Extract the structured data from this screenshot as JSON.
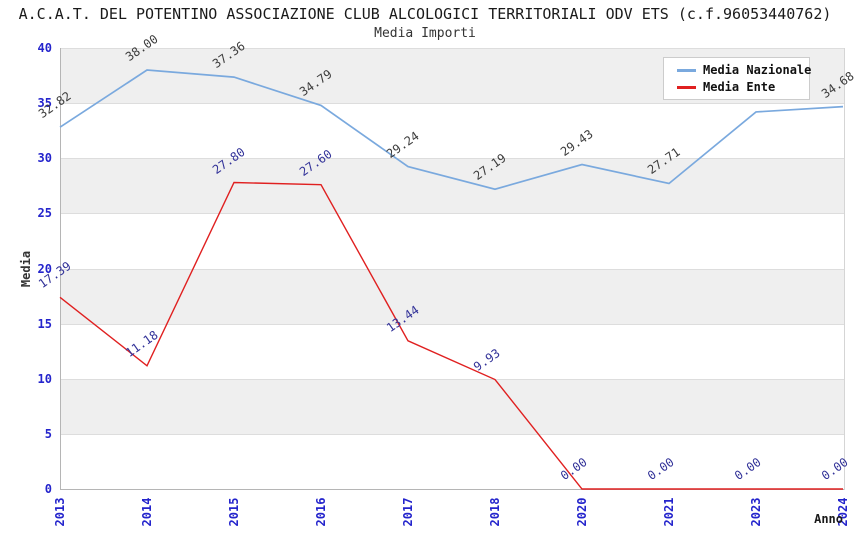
{
  "header": {
    "title": "A.C.A.T. DEL POTENTINO ASSOCIAZIONE CLUB ALCOLOGICI TERRITORIALI ODV ETS (c.f.96053440762)",
    "subtitle": "Media Importi"
  },
  "chart_data": {
    "type": "line",
    "title": "A.C.A.T. DEL POTENTINO ASSOCIAZIONE CLUB ALCOLOGICI TERRITORIALI ODV ETS (c.f.96053440762)",
    "subtitle": "Media Importi",
    "xlabel": "Anno",
    "ylabel": "Media",
    "ylim": [
      0,
      40
    ],
    "yticks": [
      0,
      5,
      10,
      15,
      20,
      25,
      30,
      35,
      40
    ],
    "grid": "horizontal-bands",
    "legend_position": "top-right",
    "categories": [
      "2013",
      "2014",
      "2015",
      "2016",
      "2017",
      "2018",
      "2020",
      "2021",
      "2023",
      "2024"
    ],
    "series": [
      {
        "name": "Media Nazionale",
        "color": "#7aa9de",
        "label_color": "#3d3d3d",
        "values": [
          32.82,
          38.0,
          37.36,
          34.79,
          29.24,
          27.19,
          29.43,
          27.71,
          34.2,
          34.68
        ],
        "labels": [
          "32.82",
          "38.00",
          "37.36",
          "34.79",
          "29.24",
          "27.19",
          "29.43",
          "27.71",
          "",
          "34.68"
        ]
      },
      {
        "name": "Media Ente",
        "color": "#e02020",
        "label_color": "#333399",
        "values": [
          17.39,
          11.18,
          27.8,
          27.6,
          13.44,
          9.93,
          0.0,
          0.0,
          0.0,
          0.0
        ],
        "labels": [
          "17.39",
          "11.18",
          "27.80",
          "27.60",
          "13.44",
          "9.93",
          "0.00",
          "0.00",
          "0.00",
          "0.00"
        ]
      }
    ],
    "colors": {
      "band_gray": "#efefef",
      "gridline": "#dddddd",
      "axis": "#b5b5b5",
      "tick_label": "#2424cc"
    }
  }
}
